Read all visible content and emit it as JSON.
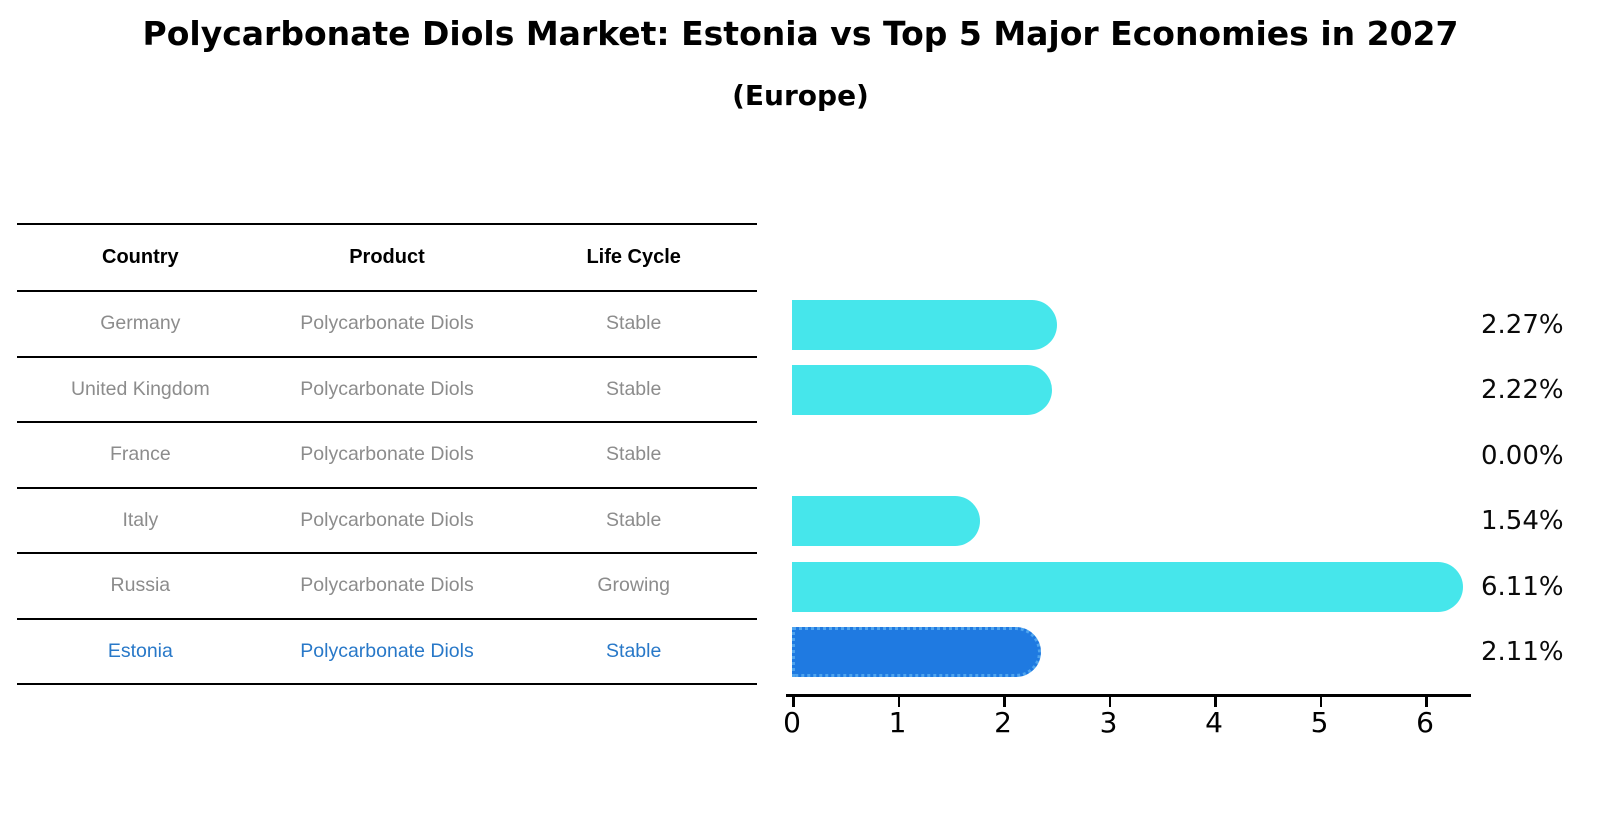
{
  "page": {
    "title": "Polycarbonate Diols Market: Estonia vs Top 5 Major Economies in 2027",
    "subtitle": "(Europe)"
  },
  "table": {
    "headers": [
      "Country",
      "Product",
      "Life Cycle"
    ],
    "rows": [
      {
        "country": "Germany",
        "product": "Polycarbonate Diols",
        "life_cycle": "Stable",
        "value_label": "2.27%",
        "highlighted": false
      },
      {
        "country": "United Kingdom",
        "product": "Polycarbonate Diols",
        "life_cycle": "Stable",
        "value_label": "2.22%",
        "highlighted": false
      },
      {
        "country": "France",
        "product": "Polycarbonate Diols",
        "life_cycle": "Stable",
        "value_label": "0.00%",
        "highlighted": false
      },
      {
        "country": "Italy",
        "product": "Polycarbonate Diols",
        "life_cycle": "Stable",
        "value_label": "1.54%",
        "highlighted": false
      },
      {
        "country": "Russia",
        "product": "Polycarbonate Diols",
        "life_cycle": "Growing",
        "value_label": "6.11%",
        "highlighted": false
      },
      {
        "country": "Estonia",
        "product": "Polycarbonate Diols",
        "life_cycle": "Stable",
        "value_label": "2.11%",
        "highlighted": true
      }
    ]
  },
  "chart_data": {
    "type": "bar",
    "orientation": "horizontal",
    "title": "Polycarbonate Diols Market: Estonia vs Top 5 Major Economies in 2027",
    "subtitle": "(Europe)",
    "categories": [
      "Germany",
      "United Kingdom",
      "France",
      "Italy",
      "Russia",
      "Estonia"
    ],
    "values": [
      2.27,
      2.22,
      0.0,
      1.54,
      6.11,
      2.11
    ],
    "value_labels": [
      "2.27%",
      "2.22%",
      "0.00%",
      "1.54%",
      "6.11%",
      "2.11%"
    ],
    "xlim": [
      0,
      6.5
    ],
    "x_ticks": [
      0,
      1,
      2,
      3,
      4,
      5,
      6
    ],
    "grid": false,
    "legend": false,
    "bar_color": "#46E6EB",
    "highlight_bar_color": "#1F7AE1",
    "highlight_index": 5,
    "highlight_border_style": "dotted"
  },
  "colors": {
    "row_text": "#8C8C8C",
    "highlight_text": "#2878C8",
    "axis_line": "#000000",
    "value_label_text": "#0A0A0A"
  }
}
